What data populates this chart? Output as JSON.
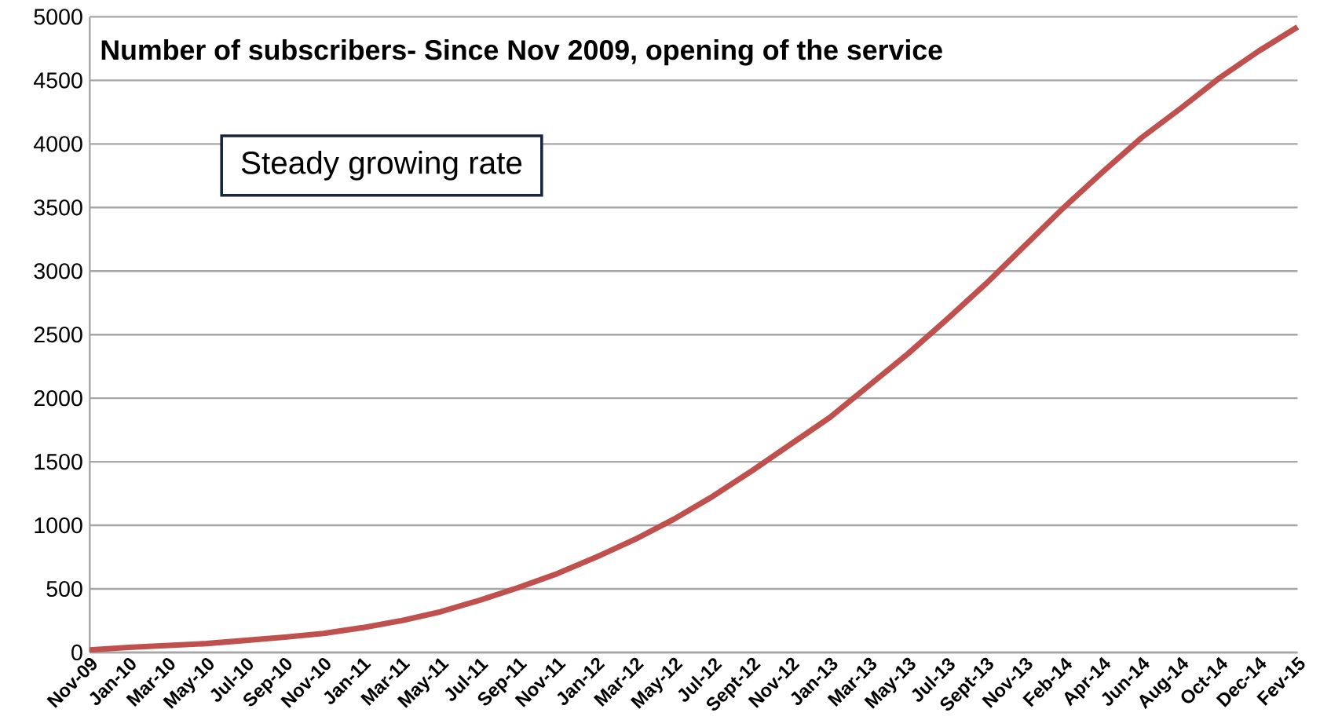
{
  "chart_data": {
    "type": "line",
    "title": "Number of  subscribers- Since Nov 2009, opening of the service",
    "annotations": [
      "Steady growing rate"
    ],
    "categories": [
      "Nov-09",
      "Jan-10",
      "Mar-10",
      "May-10",
      "Jul-10",
      "Sep-10",
      "Nov-10",
      "Jan-11",
      "Mar-11",
      "May-11",
      "Jul-11",
      "Sep-11",
      "Nov-11",
      "Jan-12",
      "Mar-12",
      "May-12",
      "Jul-12",
      "Sept-12",
      "Nov-12",
      "Jan-13",
      "Mar-13",
      "May-13",
      "Jul-13",
      "Sept-13",
      "Nov-13",
      "Feb-14",
      "Apr-14",
      "Jun-14",
      "Aug-14",
      "Oct-14",
      "Dec-14",
      "Fev-15"
    ],
    "values": [
      20,
      40,
      55,
      70,
      95,
      120,
      150,
      195,
      250,
      320,
      410,
      510,
      620,
      750,
      890,
      1050,
      1230,
      1430,
      1640,
      1850,
      2100,
      2350,
      2620,
      2900,
      3200,
      3500,
      3780,
      4050,
      4280,
      4520,
      4730,
      4920
    ],
    "color": "#c0504d",
    "ylim": [
      0,
      5000
    ],
    "yticks": [
      0,
      500,
      1000,
      1500,
      2000,
      2500,
      3000,
      3500,
      4000,
      4500,
      5000
    ],
    "grid": "y"
  }
}
